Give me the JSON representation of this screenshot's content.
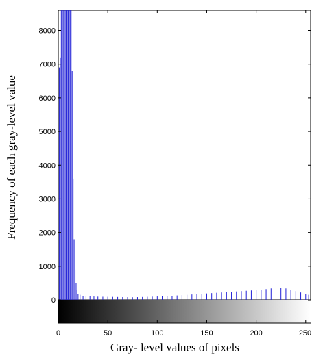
{
  "chart_data": {
    "type": "bar",
    "title": "",
    "xlabel": "Gray- level values of pixels",
    "ylabel": "Frequency of each gray-level value",
    "xlim": [
      0,
      255
    ],
    "ylim": [
      0,
      8600
    ],
    "x_ticks": [
      0,
      50,
      100,
      150,
      200,
      250
    ],
    "x_tick_labels": [
      "0",
      "50",
      "100",
      "150",
      "200",
      "250"
    ],
    "y_ticks": [
      0,
      1000,
      2000,
      3000,
      4000,
      5000,
      6000,
      7000,
      8000
    ],
    "y_tick_labels": [
      "0",
      "1000",
      "2000",
      "3000",
      "4000",
      "5000",
      "6000",
      "7000",
      "8000"
    ],
    "grid": false,
    "bar_color": "#1f1fd6",
    "colorbar": "grayscale-gradient-below-x-axis",
    "series": [
      {
        "x": [
          1,
          2,
          3,
          4,
          5,
          6,
          7,
          8,
          9,
          10,
          11,
          12,
          13,
          14,
          15,
          16,
          17,
          18,
          19,
          20,
          22,
          25,
          28,
          32,
          36,
          40,
          45,
          50,
          55,
          60,
          65,
          70,
          75,
          80,
          85,
          90,
          95,
          100,
          105,
          110,
          115,
          120,
          125,
          130,
          135,
          140,
          145,
          150,
          155,
          160,
          165,
          170,
          175,
          180,
          185,
          190,
          195,
          200,
          205,
          210,
          215,
          220,
          225,
          230,
          235,
          240,
          245,
          250,
          253
        ],
        "values": [
          6900,
          7200,
          8600,
          8600,
          8600,
          8600,
          8600,
          8600,
          8600,
          8600,
          8600,
          8600,
          8600,
          6800,
          3600,
          1800,
          900,
          500,
          300,
          180,
          150,
          120,
          110,
          105,
          100,
          95,
          92,
          90,
          88,
          85,
          82,
          80,
          78,
          80,
          85,
          90,
          95,
          100,
          105,
          110,
          120,
          130,
          140,
          150,
          160,
          170,
          180,
          190,
          200,
          210,
          220,
          230,
          240,
          250,
          260,
          270,
          280,
          290,
          300,
          320,
          340,
          350,
          360,
          340,
          300,
          260,
          220,
          180,
          150
        ]
      }
    ]
  }
}
